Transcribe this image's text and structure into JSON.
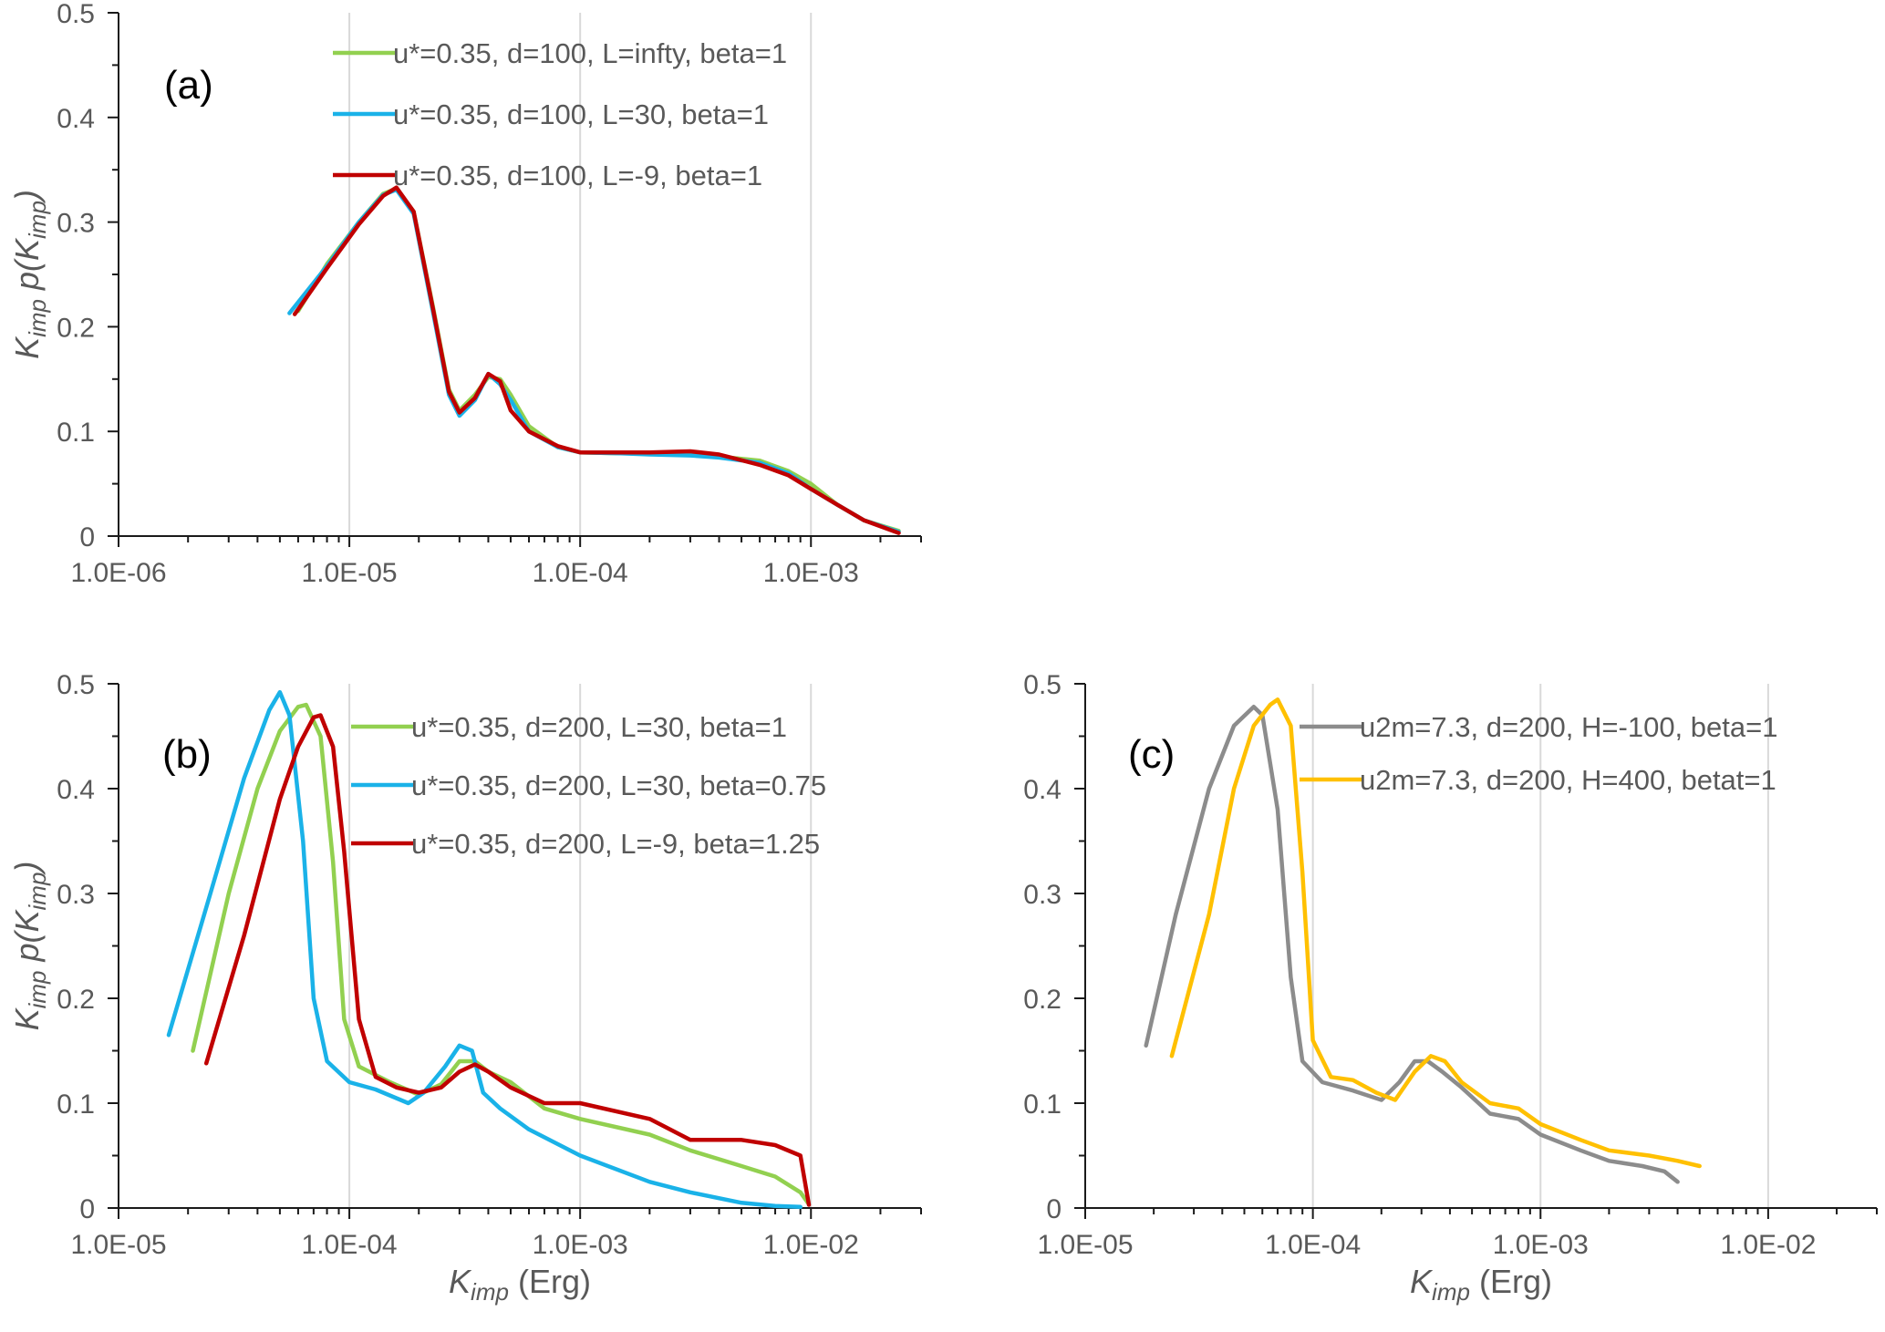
{
  "chart_data": [
    {
      "type": "line",
      "panel_label": "(a)",
      "xlabel": "",
      "ylabel_main": "K",
      "ylabel_sub": "imp",
      "ylabel_mid": " p(K",
      "ylabel_sub2": "imp",
      "ylabel_end": ")",
      "xscale": "log",
      "xlim": [
        1e-06,
        0.003
      ],
      "ylim": [
        0,
        0.5
      ],
      "xticks": [
        "1.0E-06",
        "1.0E-05",
        "1.0E-04",
        "1.0E-03"
      ],
      "yticks": [
        "0",
        "0.1",
        "0.2",
        "0.3",
        "0.4",
        "0.5"
      ],
      "grid": "vertical",
      "legend_position": "top-right",
      "series": [
        {
          "name": "u*=0.35, d=100, L=infty, beta=1",
          "color": "#92d050",
          "x": [
            6e-06,
            8e-06,
            1.1e-05,
            1.4e-05,
            1.6e-05,
            1.9e-05,
            2.3e-05,
            2.7e-05,
            3e-05,
            3.5e-05,
            4e-05,
            4.5e-05,
            5e-05,
            6e-05,
            8e-05,
            0.0001,
            0.00015,
            0.0002,
            0.0003,
            0.0004,
            0.0006,
            0.0008,
            0.001,
            0.0013,
            0.0017,
            0.0024
          ],
          "y": [
            0.215,
            0.26,
            0.3,
            0.327,
            0.332,
            0.31,
            0.22,
            0.14,
            0.12,
            0.135,
            0.152,
            0.15,
            0.135,
            0.105,
            0.085,
            0.08,
            0.079,
            0.079,
            0.078,
            0.076,
            0.072,
            0.062,
            0.05,
            0.03,
            0.015,
            0.005
          ]
        },
        {
          "name": "u*=0.35, d=100, L=30, beta=1",
          "color": "#1ab2e8",
          "x": [
            5.5e-06,
            8e-06,
            1.1e-05,
            1.4e-05,
            1.6e-05,
            1.9e-05,
            2.3e-05,
            2.7e-05,
            3e-05,
            3.5e-05,
            4e-05,
            4.5e-05,
            5e-05,
            6e-05,
            8e-05,
            0.0001,
            0.00015,
            0.0002,
            0.0003,
            0.0004,
            0.0006,
            0.0008,
            0.001,
            0.0013,
            0.0017,
            0.0024
          ],
          "y": [
            0.213,
            0.258,
            0.3,
            0.326,
            0.331,
            0.308,
            0.215,
            0.135,
            0.115,
            0.13,
            0.155,
            0.145,
            0.13,
            0.1,
            0.085,
            0.08,
            0.079,
            0.078,
            0.077,
            0.075,
            0.07,
            0.06,
            0.045,
            0.03,
            0.015,
            0.004
          ]
        },
        {
          "name": "u*=0.35, d=100, L=-9, beta=1",
          "color": "#c00000",
          "x": [
            5.8e-06,
            8e-06,
            1.1e-05,
            1.4e-05,
            1.6e-05,
            1.9e-05,
            2.3e-05,
            2.7e-05,
            3e-05,
            3.5e-05,
            4e-05,
            4.5e-05,
            5e-05,
            6e-05,
            8e-05,
            0.0001,
            0.00015,
            0.0002,
            0.0003,
            0.0004,
            0.0006,
            0.0008,
            0.001,
            0.0013,
            0.0017,
            0.0024
          ],
          "y": [
            0.212,
            0.256,
            0.298,
            0.325,
            0.333,
            0.31,
            0.218,
            0.138,
            0.118,
            0.132,
            0.155,
            0.148,
            0.12,
            0.1,
            0.086,
            0.08,
            0.08,
            0.08,
            0.081,
            0.078,
            0.068,
            0.058,
            0.045,
            0.03,
            0.015,
            0.003
          ]
        }
      ]
    },
    {
      "type": "line",
      "panel_label": "(b)",
      "xlabel_main": "K",
      "xlabel_sub": "imp",
      "xlabel_end": " (Erg)",
      "ylabel_main": "K",
      "ylabel_sub": "imp",
      "ylabel_mid": " p(K",
      "ylabel_sub2": "imp",
      "ylabel_end": ")",
      "xscale": "log",
      "xlim": [
        1e-05,
        0.03
      ],
      "ylim": [
        0,
        0.5
      ],
      "xticks": [
        "1.0E-05",
        "1.0E-04",
        "1.0E-03",
        "1.0E-02"
      ],
      "yticks": [
        "0",
        "0.1",
        "0.2",
        "0.3",
        "0.4",
        "0.5"
      ],
      "grid": "vertical",
      "legend_position": "top-right",
      "series": [
        {
          "name": "u*=0.35, d=200, L=30, beta=1",
          "color": "#92d050",
          "x": [
            2.1e-05,
            3e-05,
            4e-05,
            5e-05,
            6e-05,
            6.5e-05,
            7.5e-05,
            8.5e-05,
            9.5e-05,
            0.00011,
            0.00015,
            0.0002,
            0.00025,
            0.0003,
            0.00035,
            0.0004,
            0.0005,
            0.0007,
            0.001,
            0.002,
            0.003,
            0.005,
            0.007,
            0.009,
            0.0097
          ],
          "y": [
            0.15,
            0.3,
            0.4,
            0.455,
            0.478,
            0.48,
            0.45,
            0.33,
            0.18,
            0.135,
            0.12,
            0.108,
            0.118,
            0.14,
            0.14,
            0.13,
            0.12,
            0.095,
            0.085,
            0.07,
            0.055,
            0.04,
            0.03,
            0.015,
            0.005
          ]
        },
        {
          "name": "u*=0.35, d=200, L=30, beta=0.75",
          "color": "#1ab2e8",
          "x": [
            1.65e-05,
            2.5e-05,
            3.5e-05,
            4.5e-05,
            5e-05,
            5.5e-05,
            6.3e-05,
            7e-05,
            8e-05,
            0.0001,
            0.00013,
            0.00018,
            0.00021,
            0.00026,
            0.0003,
            0.00034,
            0.00038,
            0.00045,
            0.0006,
            0.001,
            0.002,
            0.003,
            0.005,
            0.007,
            0.009
          ],
          "y": [
            0.165,
            0.3,
            0.41,
            0.475,
            0.492,
            0.47,
            0.35,
            0.2,
            0.14,
            0.12,
            0.113,
            0.1,
            0.11,
            0.135,
            0.155,
            0.15,
            0.11,
            0.095,
            0.075,
            0.05,
            0.025,
            0.015,
            0.005,
            0.002,
            0.001
          ]
        },
        {
          "name": "u*=0.35, d=200, L=-9, beta=1.25",
          "color": "#c00000",
          "x": [
            2.4e-05,
            3.5e-05,
            5e-05,
            6e-05,
            7e-05,
            7.5e-05,
            8.5e-05,
            9.5e-05,
            0.00011,
            0.00013,
            0.00016,
            0.0002,
            0.00025,
            0.0003,
            0.00035,
            0.0004,
            0.0005,
            0.0007,
            0.001,
            0.002,
            0.003,
            0.005,
            0.007,
            0.009,
            0.0098
          ],
          "y": [
            0.138,
            0.26,
            0.39,
            0.44,
            0.468,
            0.47,
            0.44,
            0.34,
            0.18,
            0.125,
            0.115,
            0.11,
            0.115,
            0.13,
            0.137,
            0.13,
            0.115,
            0.1,
            0.1,
            0.085,
            0.065,
            0.065,
            0.06,
            0.05,
            0.003
          ]
        }
      ]
    },
    {
      "type": "line",
      "panel_label": "(c)",
      "xlabel_main": "K",
      "xlabel_sub": "imp",
      "xlabel_end": " (Erg)",
      "xscale": "log",
      "xlim": [
        1e-05,
        0.03
      ],
      "ylim": [
        0,
        0.5
      ],
      "xticks": [
        "1.0E-05",
        "1.0E-04",
        "1.0E-03",
        "1.0E-02"
      ],
      "yticks": [
        "0",
        "0.1",
        "0.2",
        "0.3",
        "0.4",
        "0.5"
      ],
      "grid": "vertical",
      "legend_position": "top-right",
      "series": [
        {
          "name": "u2m=7.3, d=200, H=-100, beta=1",
          "color": "#8c8c8c",
          "x": [
            1.85e-05,
            2.5e-05,
            3.5e-05,
            4.5e-05,
            5.5e-05,
            6e-05,
            7e-05,
            8e-05,
            9e-05,
            0.00011,
            0.00015,
            0.0002,
            0.00024,
            0.00028,
            0.00032,
            0.00037,
            0.00045,
            0.0006,
            0.0008,
            0.001,
            0.0015,
            0.002,
            0.0028,
            0.0035,
            0.004
          ],
          "y": [
            0.155,
            0.28,
            0.4,
            0.46,
            0.478,
            0.47,
            0.38,
            0.22,
            0.14,
            0.12,
            0.112,
            0.103,
            0.12,
            0.14,
            0.14,
            0.13,
            0.115,
            0.09,
            0.085,
            0.07,
            0.055,
            0.045,
            0.04,
            0.035,
            0.025
          ]
        },
        {
          "name": "u2m=7.3, d=200, H=400, betat=1",
          "color": "#ffc000",
          "x": [
            2.4e-05,
            3.5e-05,
            4.5e-05,
            5.5e-05,
            6.5e-05,
            7e-05,
            8e-05,
            9e-05,
            0.0001,
            0.00012,
            0.00015,
            0.00019,
            0.00023,
            0.00028,
            0.00033,
            0.00038,
            0.00045,
            0.0006,
            0.0008,
            0.001,
            0.0015,
            0.002,
            0.003,
            0.004,
            0.005
          ],
          "y": [
            0.145,
            0.28,
            0.4,
            0.46,
            0.48,
            0.485,
            0.46,
            0.32,
            0.16,
            0.125,
            0.122,
            0.11,
            0.103,
            0.13,
            0.145,
            0.14,
            0.12,
            0.1,
            0.095,
            0.08,
            0.065,
            0.055,
            0.05,
            0.045,
            0.04
          ]
        }
      ]
    }
  ]
}
